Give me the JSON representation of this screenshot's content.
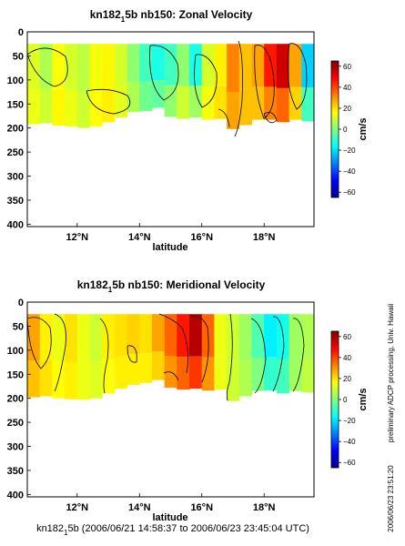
{
  "figure": {
    "footer": {
      "pre": "kn182",
      "sub": "1",
      "post": "5b (2006/06/21 14:58:37 to 2006/06/23 23:45:04 UTC)"
    },
    "side_text": "preliminary ADCP processing, Univ. Hawaii",
    "timestamp": "2006/06/23 23:51:20"
  },
  "chart_data": [
    {
      "type": "heatmap",
      "title": {
        "pre": "kn182",
        "sub": "1",
        "post": "5b nb150: Zonal Velocity"
      },
      "xlabel": "latitude",
      "ylabel": "",
      "xlim": [
        10.4,
        19.6
      ],
      "ylim": [
        405,
        0
      ],
      "x_ticks": [
        12,
        14,
        16,
        18
      ],
      "x_tick_labels": [
        "12°N",
        "14°N",
        "16°N",
        "18°N"
      ],
      "y_ticks": [
        0,
        50,
        100,
        150,
        200,
        250,
        300,
        350,
        400
      ],
      "y_tick_labels": [
        "0",
        "50",
        "100",
        "150",
        "200",
        "250",
        "300",
        "350",
        "400"
      ],
      "colorbar": {
        "label": "cm/s",
        "range": [
          -65,
          65
        ],
        "ticks": [
          60,
          40,
          20,
          0,
          -20,
          -40,
          -60
        ],
        "tick_labels": [
          "60",
          "40",
          "20",
          "0",
          "−20",
          "−40",
          "−60"
        ]
      },
      "depth_top": 25,
      "x": [
        10.6,
        11.0,
        11.4,
        11.8,
        12.2,
        12.6,
        13.0,
        13.4,
        13.8,
        14.2,
        14.6,
        15.0,
        15.4,
        15.8,
        16.2,
        16.6,
        17.0,
        17.4,
        17.8,
        18.2,
        18.6,
        19.0,
        19.4
      ],
      "bottom_depth": [
        192,
        190,
        195,
        197,
        200,
        197,
        188,
        178,
        167,
        165,
        158,
        177,
        181,
        178,
        183,
        181,
        202,
        194,
        183,
        183,
        188,
        183,
        186
      ],
      "core_values": [
        12,
        6,
        16,
        11,
        8,
        15,
        17,
        11,
        2,
        -8,
        -13,
        -8,
        2,
        -13,
        11,
        18,
        32,
        24,
        28,
        46,
        55,
        28,
        -22
      ],
      "deep_values": [
        14,
        10,
        17,
        14,
        10,
        16,
        18,
        13,
        6,
        -2,
        -4,
        2,
        10,
        4,
        15,
        20,
        28,
        24,
        24,
        32,
        36,
        22,
        -8
      ]
    },
    {
      "type": "heatmap",
      "title": {
        "pre": "kn182",
        "sub": "1",
        "post": "5b nb150: Meridional Velocity"
      },
      "xlabel": "latitude",
      "ylabel": "",
      "xlim": [
        10.4,
        19.6
      ],
      "ylim": [
        405,
        0
      ],
      "x_ticks": [
        12,
        14,
        16,
        18
      ],
      "x_tick_labels": [
        "12°N",
        "14°N",
        "16°N",
        "18°N"
      ],
      "y_ticks": [
        0,
        50,
        100,
        150,
        200,
        250,
        300,
        350,
        400
      ],
      "y_tick_labels": [
        "0",
        "50",
        "100",
        "150",
        "200",
        "250",
        "300",
        "350",
        "400"
      ],
      "colorbar": {
        "label": "cm/s",
        "range": [
          -65,
          65
        ],
        "ticks": [
          60,
          40,
          20,
          0,
          -20,
          -40,
          -60
        ],
        "tick_labels": [
          "60",
          "40",
          "20",
          "0",
          "−20",
          "−40",
          "−60"
        ]
      },
      "depth_top": 25,
      "x": [
        10.6,
        11.0,
        11.4,
        11.8,
        12.2,
        12.6,
        13.0,
        13.4,
        13.8,
        14.2,
        14.6,
        15.0,
        15.4,
        15.8,
        16.2,
        16.6,
        17.0,
        17.4,
        17.8,
        18.2,
        18.6,
        19.0,
        19.4
      ],
      "bottom_depth": [
        198,
        196,
        200,
        202,
        203,
        200,
        190,
        180,
        172,
        168,
        162,
        178,
        182,
        180,
        184,
        182,
        206,
        196,
        185,
        184,
        190,
        185,
        188
      ],
      "core_values": [
        28,
        18,
        14,
        20,
        14,
        10,
        18,
        20,
        22,
        20,
        28,
        36,
        46,
        58,
        36,
        14,
        10,
        4,
        -6,
        -18,
        -14,
        4,
        6
      ],
      "deep_values": [
        24,
        20,
        16,
        18,
        14,
        12,
        16,
        18,
        18,
        18,
        22,
        30,
        36,
        42,
        30,
        14,
        10,
        6,
        0,
        -10,
        -8,
        4,
        8
      ]
    }
  ]
}
